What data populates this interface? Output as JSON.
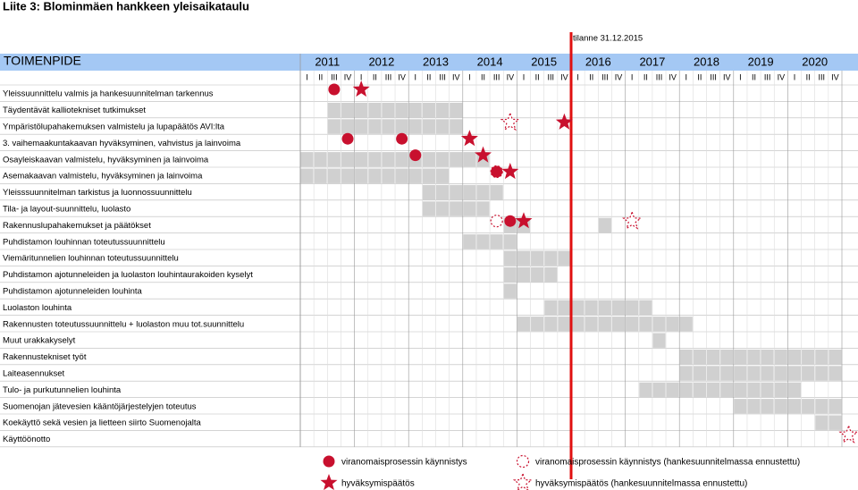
{
  "title": "Liite 3: Blominmäen hankkeen yleisaikataulu",
  "status": "tilanne 31.12.2015",
  "status_quarter": 20,
  "header": "TOIMENPIDE",
  "years": [
    "2011",
    "2012",
    "2013",
    "2014",
    "2015",
    "2016",
    "2017",
    "2018",
    "2019",
    "2020"
  ],
  "quarters": [
    "I",
    "II",
    "III",
    "IV"
  ],
  "rows": [
    {
      "label": "Yleissuunnittelu valmis ja hankesuunnitelman tarkennus",
      "shaded": [],
      "markers": [
        {
          "q": 2,
          "kind": "circle"
        },
        {
          "q": 4,
          "kind": "star"
        }
      ]
    },
    {
      "label": "Täydentävät kalliotekniset tutkimukset",
      "shaded": [
        2,
        3,
        4,
        5,
        6,
        7,
        8,
        9,
        10,
        11
      ],
      "markers": []
    },
    {
      "label": "Ympäristölupahakemuksen valmistelu ja lupapäätös AVI:lta",
      "shaded": [
        2,
        3,
        4,
        5,
        6,
        7,
        8,
        9,
        10,
        11
      ],
      "markers": [
        {
          "q": 15,
          "kind": "star-dashed"
        },
        {
          "q": 19,
          "kind": "star"
        }
      ]
    },
    {
      "label": "3. vaihemaakuntakaavan hyväksyminen, vahvistus ja lainvoima",
      "shaded": [],
      "markers": [
        {
          "q": 3,
          "kind": "circle"
        },
        {
          "q": 7,
          "kind": "circle"
        },
        {
          "q": 12,
          "kind": "star"
        }
      ]
    },
    {
      "label": "Osayleiskaavan valmistelu, hyväksyminen ja lainvoima",
      "shaded": [
        0,
        1,
        2,
        3,
        4,
        5,
        6,
        7,
        8,
        9,
        10,
        11,
        12,
        13
      ],
      "markers": [
        {
          "q": 8,
          "kind": "circle"
        },
        {
          "q": 13,
          "kind": "star"
        }
      ]
    },
    {
      "label": "Asemakaavan valmistelu, hyväksyminen ja lainvoima",
      "shaded": [
        0,
        1,
        2,
        3,
        4,
        5,
        6,
        7,
        8,
        9,
        10
      ],
      "markers": [
        {
          "q": 14,
          "kind": "circle-dashed"
        },
        {
          "q": 14,
          "kind": "circle"
        },
        {
          "q": 15,
          "kind": "star"
        }
      ]
    },
    {
      "label": "Yleisssuunnitelman tarkistus ja luonnossuunnittelu",
      "shaded": [
        9,
        10,
        11,
        12,
        13,
        14
      ],
      "markers": []
    },
    {
      "label": "Tila- ja layout-suunnittelu, luolasto",
      "shaded": [
        9,
        10,
        11,
        12,
        13
      ],
      "markers": []
    },
    {
      "label": "Rakennuslupahakemukset ja päätökset",
      "shaded": [
        15,
        16,
        22
      ],
      "markers": [
        {
          "q": 14,
          "kind": "circle-dashed"
        },
        {
          "q": 15,
          "kind": "circle"
        },
        {
          "q": 16,
          "kind": "star"
        },
        {
          "q": 24,
          "kind": "star-dashed"
        }
      ]
    },
    {
      "label": "Puhdistamon louhinnan toteutussuunnittelu",
      "shaded": [
        12,
        13,
        14,
        15
      ],
      "markers": []
    },
    {
      "label": "Viemäritunnelien louhinnan toteutussuunnittelu",
      "shaded": [
        15,
        16,
        17,
        18,
        19
      ],
      "markers": []
    },
    {
      "label": "Puhdistamon ajotunneleiden ja luolaston louhintaurakoiden kyselyt",
      "shaded": [
        15,
        16,
        17,
        18
      ],
      "markers": []
    },
    {
      "label": "Puhdistamon ajotunneleiden louhinta",
      "shaded": [
        15
      ],
      "markers": []
    },
    {
      "label": "Luolaston louhinta",
      "shaded": [
        18,
        19,
        20,
        21,
        22,
        23,
        24,
        25
      ],
      "markers": []
    },
    {
      "label": "Rakennusten toteutussuunnittelu + luolaston muu tot.suunnittelu",
      "shaded": [
        16,
        17,
        18,
        19,
        20,
        21,
        22,
        23,
        24,
        25,
        26,
        27,
        28
      ],
      "markers": []
    },
    {
      "label": "Muut urakkakyselyt",
      "shaded": [
        26
      ],
      "markers": []
    },
    {
      "label": "Rakennustekniset työt",
      "shaded": [
        28,
        29,
        30,
        31,
        32,
        33,
        34,
        35,
        36,
        37,
        38,
        39
      ],
      "markers": []
    },
    {
      "label": "Laiteasennukset",
      "shaded": [
        28,
        29,
        30,
        31,
        32,
        33,
        34,
        35,
        36,
        37,
        38,
        39
      ],
      "markers": []
    },
    {
      "label": "Tulo- ja purkutunnelien louhinta",
      "shaded": [
        25,
        26,
        27,
        28,
        29,
        30,
        31,
        32,
        33,
        34,
        35,
        36
      ],
      "markers": []
    },
    {
      "label": "Suomenojan jätevesien kääntöjärjestelyjen toteutus",
      "shaded": [
        32,
        33,
        34,
        35,
        36,
        37,
        38,
        39
      ],
      "markers": []
    },
    {
      "label": "Koekäyttö sekä vesien ja lietteen siirto Suomenojalta",
      "shaded": [
        38,
        39
      ],
      "markers": []
    },
    {
      "label": "Käyttöönotto",
      "shaded": [],
      "markers": [
        {
          "q": 40,
          "kind": "star-dashed"
        }
      ]
    }
  ],
  "legend": [
    {
      "kind": "circle",
      "label": "viranomaisprosessin käynnistys"
    },
    {
      "kind": "circle-dashed",
      "label": "viranomaisprosessin käynnistys (hankesuunnitelmassa ennustettu)"
    },
    {
      "kind": "star",
      "label": "hyväksymispäätös"
    },
    {
      "kind": "star-dashed",
      "label": "hyväksymispäätös (hankesuunnitelmassa ennustettu)"
    }
  ]
}
